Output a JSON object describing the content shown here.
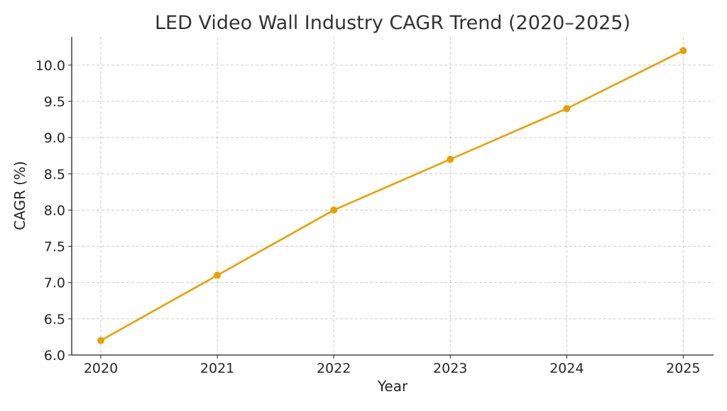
{
  "chart_data": {
    "type": "line",
    "title": "LED Video Wall Industry CAGR Trend (2020–2025)",
    "xlabel": "Year",
    "ylabel": "CAGR (%)",
    "x": [
      2020,
      2021,
      2022,
      2023,
      2024,
      2025
    ],
    "series": [
      {
        "values": [
          6.2,
          7.1,
          8.0,
          8.7,
          9.4,
          10.2
        ],
        "color": "#E8A000",
        "marker": "circle"
      }
    ],
    "xticks": [
      "2020",
      "2021",
      "2022",
      "2023",
      "2024",
      "2025"
    ],
    "yticks": [
      "6.0",
      "6.5",
      "7.0",
      "7.5",
      "8.0",
      "8.5",
      "9.0",
      "9.5",
      "10.0"
    ],
    "xlim": [
      2019.75,
      2025.26
    ],
    "ylim": [
      6.0,
      10.39
    ],
    "grid": true,
    "grid_style": "dashed",
    "legend": "none"
  }
}
